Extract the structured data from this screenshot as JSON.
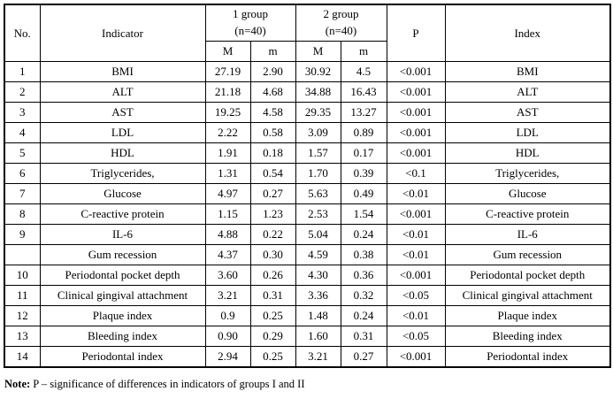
{
  "table": {
    "header": {
      "no": "No.",
      "indicator": "Indicator",
      "group1_line1": "1 group",
      "group1_line2": "(n=40)",
      "group2_line1": "2 group",
      "group2_line2": "(n=40)",
      "M": "M",
      "m": "m",
      "p": "P",
      "index": "Index"
    },
    "rows": [
      [
        "1",
        "BMI",
        "27.19",
        "2.90",
        "30.92",
        "4.5",
        "<0.001",
        "BMI"
      ],
      [
        "2",
        "ALT",
        "21.18",
        "4.68",
        "34.88",
        "16.43",
        "<0.001",
        "ALT"
      ],
      [
        "3",
        "AST",
        "19.25",
        "4.58",
        "29.35",
        "13.27",
        "<0.001",
        "AST"
      ],
      [
        "4",
        "LDL",
        "2.22",
        "0.58",
        "3.09",
        "0.89",
        "<0.001",
        "LDL"
      ],
      [
        "5",
        "HDL",
        "1.91",
        "0.18",
        "1.57",
        "0.17",
        "<0.001",
        "HDL"
      ],
      [
        "6",
        "Triglycerides,",
        "1.31",
        "0.54",
        "1.70",
        "0.39",
        "<0.1",
        "Triglycerides,"
      ],
      [
        "7",
        "Glucose",
        "4.97",
        "0.27",
        "5.63",
        "0.49",
        "<0.01",
        "Glucose"
      ],
      [
        "8",
        "C-reactive protein",
        "1.15",
        "1.23",
        "2.53",
        "1.54",
        "<0.001",
        "C-reactive protein"
      ],
      [
        "9",
        "IL-6",
        "4.88",
        "0.22",
        "5.04",
        "0.24",
        "<0.01",
        "IL-6"
      ],
      [
        "",
        "Gum recession",
        "4.37",
        "0.30",
        "4.59",
        "0.38",
        "<0.01",
        "Gum recession"
      ],
      [
        "10",
        "Periodontal pocket depth",
        "3.60",
        "0.26",
        "4.30",
        "0.36",
        "<0.001",
        "Periodontal pocket depth"
      ],
      [
        "11",
        "Clinical gingival attachment",
        "3.21",
        "0.31",
        "3.36",
        "0.32",
        "<0.05",
        "Clinical gingival attachment"
      ],
      [
        "12",
        "Plaque index",
        "0.9",
        "0.25",
        "1.48",
        "0.24",
        "<0.01",
        "Plaque index"
      ],
      [
        "13",
        "Bleeding index",
        "0.90",
        "0.29",
        "1.60",
        "0.31",
        "<0.05",
        "Bleeding index"
      ],
      [
        "14",
        "Periodontal index",
        "2.94",
        "0.25",
        "3.21",
        "0.27",
        "<0.001",
        "Periodontal index"
      ]
    ]
  },
  "note": {
    "label": "Note:",
    "text": " P – significance of differences in indicators of groups I and II"
  }
}
